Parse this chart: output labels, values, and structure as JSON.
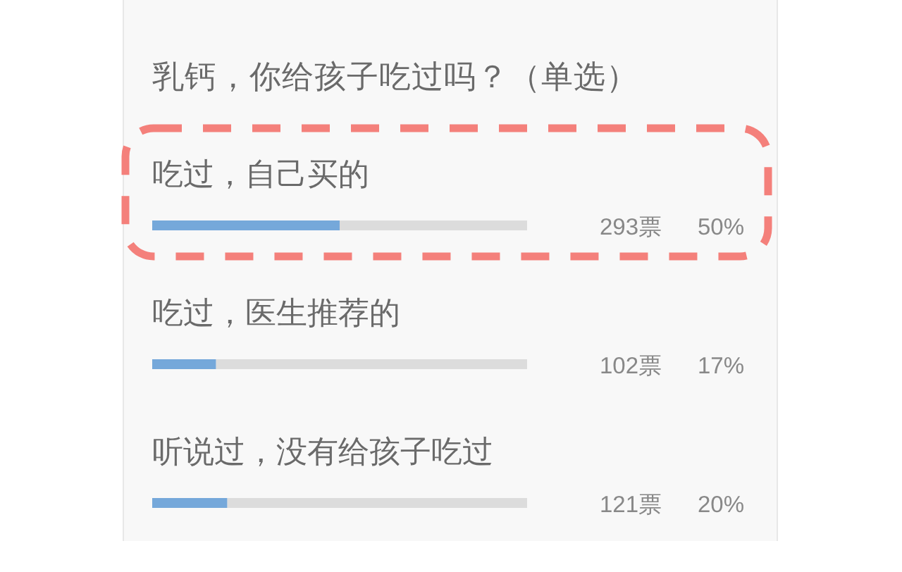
{
  "chart_data": {
    "type": "bar",
    "orientation": "horizontal",
    "title": "乳钙，你给孩子吃过吗？（单选）",
    "categories": [
      "吃过，自己买的",
      "吃过，医生推荐的",
      "听说过，没有给孩子吃过"
    ],
    "values": [
      50,
      17,
      20
    ],
    "color": "#75a8da",
    "xlim": [
      0,
      100
    ],
    "value_labels": [
      "50%",
      "17%",
      "20%"
    ],
    "annotations": [
      "293票",
      "102票",
      "121票"
    ]
  }
}
